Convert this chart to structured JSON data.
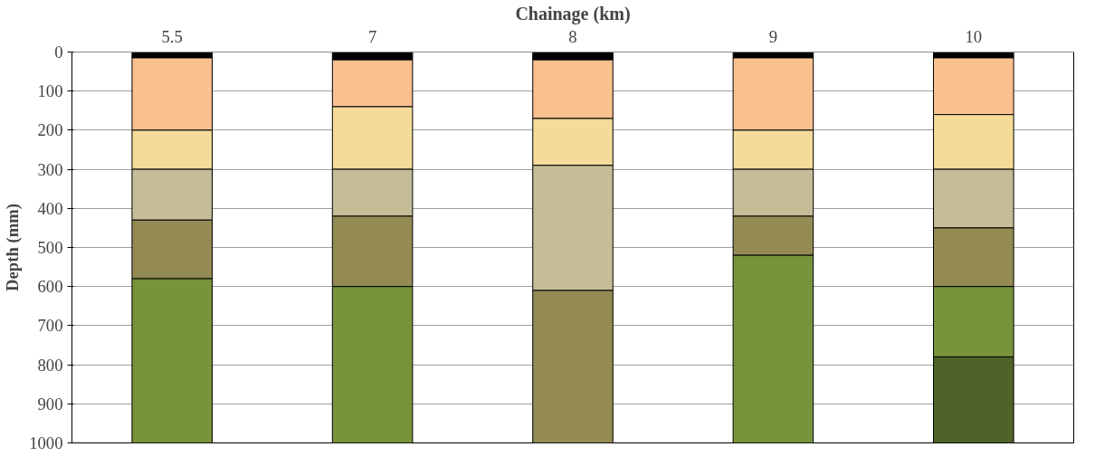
{
  "chart_data": {
    "type": "bar",
    "stacked": true,
    "xlabel": "Chainage (km)",
    "ylabel": "Depth (mm)",
    "categories": [
      "5.5",
      "7",
      "8",
      "9",
      "10"
    ],
    "series": [
      {
        "color": "#000000",
        "values": [
          15,
          20,
          20,
          15,
          15
        ]
      },
      {
        "color": "#fac090",
        "values": [
          185,
          120,
          150,
          185,
          145
        ]
      },
      {
        "color": "#f3db99",
        "values": [
          100,
          160,
          120,
          100,
          140
        ]
      },
      {
        "color": "#c4bd97",
        "values": [
          130,
          120,
          320,
          120,
          150
        ]
      },
      {
        "color": "#948a54",
        "values": [
          150,
          180,
          390,
          100,
          150
        ]
      },
      {
        "color": "#77933c",
        "values": [
          420,
          400,
          null,
          480,
          180
        ]
      },
      {
        "color": "#4f6228",
        "values": [
          null,
          null,
          null,
          null,
          220
        ]
      }
    ],
    "ylim": [
      1000,
      0
    ],
    "yticks": [
      0,
      100,
      200,
      300,
      400,
      500,
      600,
      700,
      800,
      900,
      1000
    ],
    "grid": "y"
  }
}
